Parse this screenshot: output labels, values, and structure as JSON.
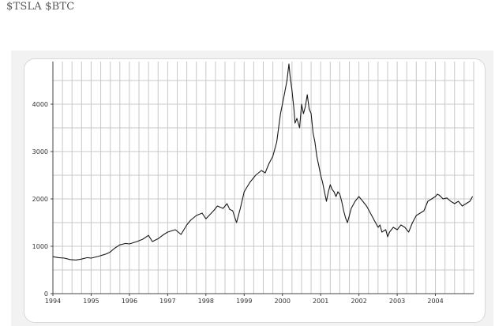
{
  "caption": "$TSLA $BTC",
  "colors": {
    "line": "#1a1a1a",
    "grid": "#c8c8c8",
    "axis": "#444444",
    "frame_bg": "#f2f2f2"
  },
  "chart_data": {
    "type": "line",
    "title": "",
    "xlabel": "",
    "ylabel": "",
    "xlim": [
      1994,
      2005
    ],
    "ylim": [
      0,
      4900
    ],
    "x_ticks": [
      1994,
      1995,
      1996,
      1997,
      1998,
      1999,
      2000,
      2001,
      2002,
      2003,
      2004
    ],
    "x_tick_labels": [
      "1994",
      "1995",
      "1996",
      "1997",
      "1998",
      "1999",
      "2000",
      "2001",
      "2002",
      "2003",
      "2004"
    ],
    "y_ticks": [
      0,
      1000,
      2000,
      3000,
      4000
    ],
    "y_tick_labels": [
      "0",
      "1000",
      "2000",
      "3000",
      "4000"
    ],
    "grid": true,
    "series": [
      {
        "x": [
          1994.0,
          1994.15,
          1994.3,
          1994.45,
          1994.6,
          1994.75,
          1994.9,
          1995.0,
          1995.2,
          1995.4,
          1995.5,
          1995.6,
          1995.75,
          1995.9,
          1996.0,
          1996.2,
          1996.35,
          1996.5,
          1996.6,
          1996.75,
          1996.9,
          1997.0,
          1997.2,
          1997.35,
          1997.5,
          1997.6,
          1997.75,
          1997.9,
          1998.0,
          1998.2,
          1998.3,
          1998.45,
          1998.55,
          1998.62,
          1998.7,
          1998.8,
          1998.9,
          1999.0,
          1999.15,
          1999.3,
          1999.45,
          1999.55,
          1999.65,
          1999.75,
          1999.85,
          1999.95,
          2000.05,
          2000.12,
          2000.17,
          2000.2,
          2000.25,
          2000.3,
          2000.33,
          2000.38,
          2000.45,
          2000.5,
          2000.55,
          2000.6,
          2000.65,
          2000.7,
          2000.75,
          2000.8,
          2000.85,
          2000.9,
          2000.95,
          2001.0,
          2001.05,
          2001.1,
          2001.15,
          2001.2,
          2001.25,
          2001.3,
          2001.35,
          2001.4,
          2001.45,
          2001.5,
          2001.55,
          2001.6,
          2001.65,
          2001.7,
          2001.75,
          2001.8,
          2001.9,
          2002.0,
          2002.1,
          2002.2,
          2002.3,
          2002.4,
          2002.5,
          2002.55,
          2002.6,
          2002.7,
          2002.75,
          2002.8,
          2002.9,
          2003.0,
          2003.1,
          2003.2,
          2003.3,
          2003.4,
          2003.5,
          2003.6,
          2003.7,
          2003.8,
          2003.9,
          2004.0,
          2004.05,
          2004.1,
          2004.2,
          2004.3,
          2004.4,
          2004.5,
          2004.6,
          2004.7,
          2004.8,
          2004.9,
          2004.97
        ],
        "values": [
          780,
          760,
          750,
          720,
          710,
          730,
          760,
          750,
          790,
          840,
          880,
          950,
          1030,
          1060,
          1050,
          1100,
          1150,
          1230,
          1100,
          1160,
          1250,
          1300,
          1350,
          1250,
          1450,
          1550,
          1650,
          1700,
          1580,
          1750,
          1850,
          1800,
          1900,
          1780,
          1750,
          1500,
          1800,
          2150,
          2350,
          2500,
          2600,
          2550,
          2750,
          2900,
          3200,
          3800,
          4200,
          4500,
          4850,
          4600,
          4300,
          3900,
          3600,
          3700,
          3500,
          4000,
          3800,
          3950,
          4200,
          3900,
          3800,
          3400,
          3200,
          2900,
          2700,
          2500,
          2350,
          2150,
          1950,
          2150,
          2300,
          2200,
          2150,
          2050,
          2150,
          2100,
          1950,
          1750,
          1600,
          1500,
          1650,
          1800,
          1950,
          2050,
          1950,
          1850,
          1700,
          1550,
          1400,
          1450,
          1300,
          1350,
          1200,
          1300,
          1400,
          1350,
          1450,
          1400,
          1300,
          1500,
          1650,
          1700,
          1750,
          1950,
          2000,
          2050,
          2100,
          2080,
          2000,
          2020,
          1950,
          1900,
          1950,
          1850,
          1900,
          1950,
          2050
        ]
      }
    ]
  }
}
